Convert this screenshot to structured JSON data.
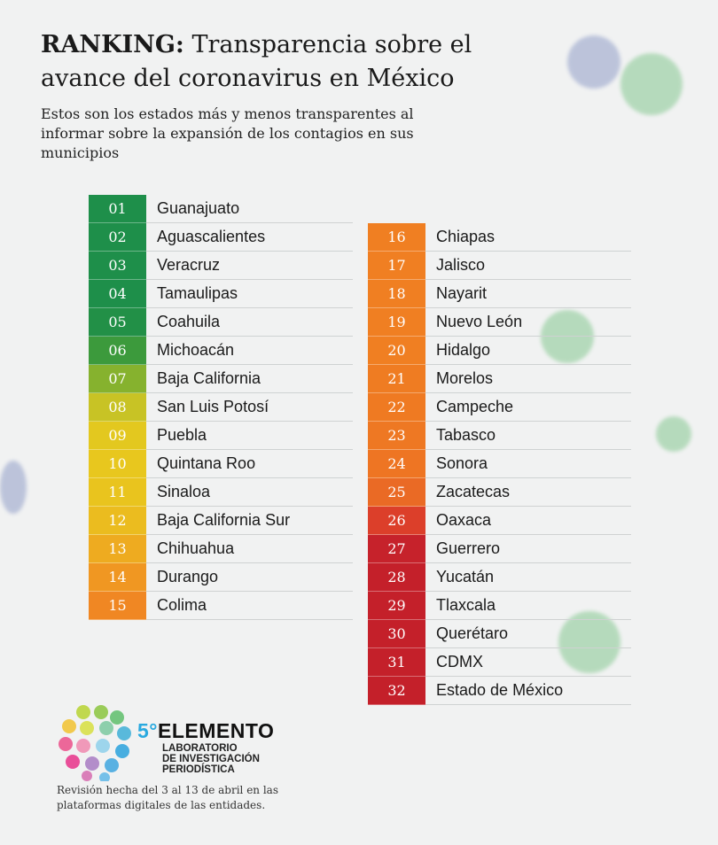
{
  "title_bold": "RANKING:",
  "title_rest": " Transparencia sobre el avance del coronavirus en México",
  "subtitle": "Estos son los estados más y menos transparentes al informar sobre la expansión de los contagios en sus municipios",
  "ranking": [
    {
      "rank": "01",
      "state": "Guanajuato",
      "color": "#1e8f4a"
    },
    {
      "rank": "02",
      "state": "Aguascalientes",
      "color": "#1e8f4a"
    },
    {
      "rank": "03",
      "state": "Veracruz",
      "color": "#1e8f4a"
    },
    {
      "rank": "04",
      "state": "Tamaulipas",
      "color": "#1e8f4a"
    },
    {
      "rank": "05",
      "state": "Coahuila",
      "color": "#229047"
    },
    {
      "rank": "06",
      "state": "Michoacán",
      "color": "#3c9a3c"
    },
    {
      "rank": "07",
      "state": "Baja California",
      "color": "#86b22e"
    },
    {
      "rank": "08",
      "state": "San Luis Potosí",
      "color": "#c8c325"
    },
    {
      "rank": "09",
      "state": "Puebla",
      "color": "#e3c81f"
    },
    {
      "rank": "10",
      "state": "Quintana Roo",
      "color": "#e8c71e"
    },
    {
      "rank": "11",
      "state": "Sinaloa",
      "color": "#e9c41e"
    },
    {
      "rank": "12",
      "state": "Baja California Sur",
      "color": "#ebbc1f"
    },
    {
      "rank": "13",
      "state": "Chihuahua",
      "color": "#eeab20"
    },
    {
      "rank": "14",
      "state": "Durango",
      "color": "#f09722"
    },
    {
      "rank": "15",
      "state": "Colima",
      "color": "#f08723"
    },
    {
      "rank": "16",
      "state": "Chiapas",
      "color": "#f07f22"
    },
    {
      "rank": "17",
      "state": "Jalisco",
      "color": "#f07f22"
    },
    {
      "rank": "18",
      "state": "Nayarit",
      "color": "#f07f22"
    },
    {
      "rank": "19",
      "state": "Nuevo León",
      "color": "#f07f22"
    },
    {
      "rank": "20",
      "state": "Hidalgo",
      "color": "#f07f22"
    },
    {
      "rank": "21",
      "state": "Morelos",
      "color": "#ef7c22"
    },
    {
      "rank": "22",
      "state": "Campeche",
      "color": "#ef7a22"
    },
    {
      "rank": "23",
      "state": "Tabasco",
      "color": "#ee7823"
    },
    {
      "rank": "24",
      "state": "Sonora",
      "color": "#ee7523"
    },
    {
      "rank": "25",
      "state": "Zacatecas",
      "color": "#ea6a25"
    },
    {
      "rank": "26",
      "state": "Oaxaca",
      "color": "#dc3f2a"
    },
    {
      "rank": "27",
      "state": "Guerrero",
      "color": "#c6222b"
    },
    {
      "rank": "28",
      "state": "Yucatán",
      "color": "#c4202a"
    },
    {
      "rank": "29",
      "state": "Tlaxcala",
      "color": "#c4202a"
    },
    {
      "rank": "30",
      "state": "Querétaro",
      "color": "#c4202a"
    },
    {
      "rank": "31",
      "state": "CDMX",
      "color": "#c4202a"
    },
    {
      "rank": "32",
      "state": "Estado de México",
      "color": "#c4202a"
    }
  ],
  "logo": {
    "number": "5°",
    "name": "ELEMENTO",
    "line1": "LABORATORIO",
    "line2": "DE INVESTIGACIÓN",
    "line3": "PERIODÍSTICA"
  },
  "footnote": "Revisión hecha del 3 al 13 de abril en las plataformas digitales de las entidades."
}
